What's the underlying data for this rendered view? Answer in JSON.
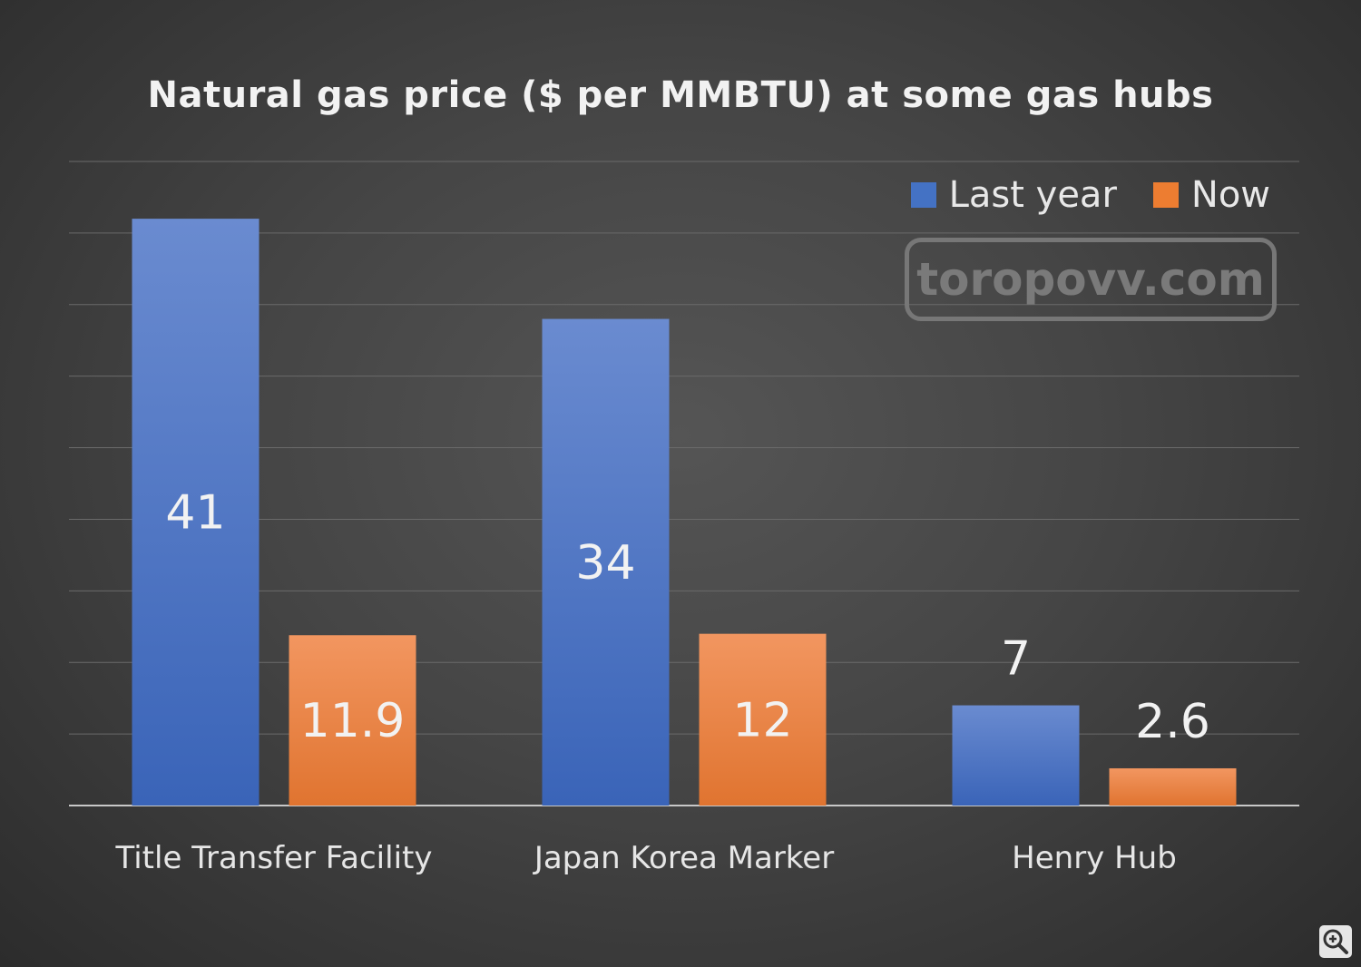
{
  "chart_data": {
    "type": "bar",
    "title": "Natural gas price ($ per MMBTU) at some gas hubs",
    "categories": [
      "Title Transfer Facility",
      "Japan Korea Marker",
      "Henry Hub"
    ],
    "series": [
      {
        "name": "Last year",
        "values": [
          41,
          34,
          7
        ],
        "color": "#4472c4"
      },
      {
        "name": "Now",
        "values": [
          11.9,
          12,
          2.6
        ],
        "color": "#ed7d31"
      }
    ],
    "ylim": [
      0,
      45
    ],
    "grid": true,
    "legend_position": "top-right",
    "data_labels": [
      "41",
      "11.9",
      "34",
      "12",
      "7",
      "2.6"
    ]
  },
  "watermark": {
    "text": "toropovv.com"
  },
  "icons": {
    "zoom": "zoom-in-icon"
  }
}
